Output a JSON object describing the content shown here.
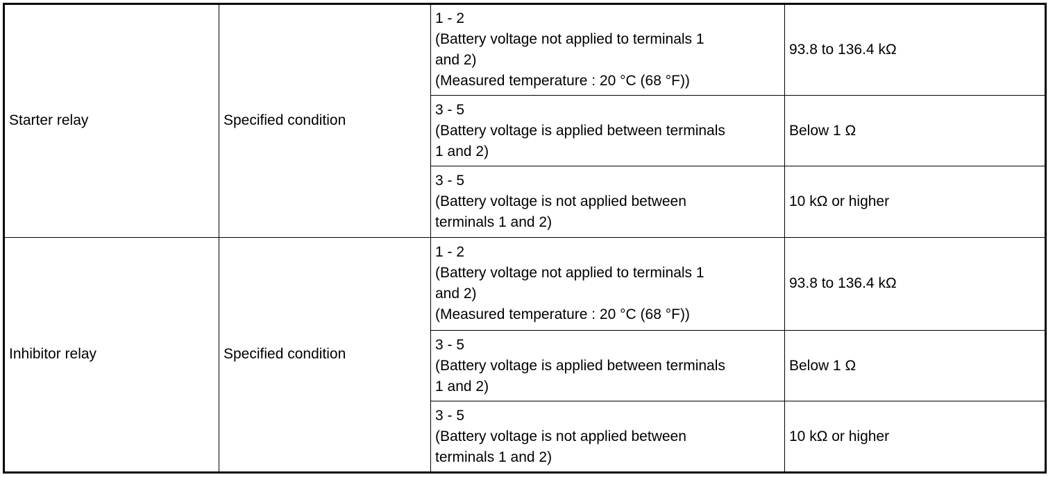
{
  "rows": [
    {
      "component": "Starter relay",
      "condition": "Specified condition",
      "tests": [
        {
          "terminals": "1 - 2",
          "notes": [
            "(Battery voltage not applied to terminals 1",
            "and 2)",
            "(Measured temperature : 20 °C (68 °F))"
          ],
          "spec": "93.8 to 136.4 kΩ"
        },
        {
          "terminals": "3 - 5",
          "notes": [
            "(Battery voltage is applied between terminals",
            "1 and 2)"
          ],
          "spec": "Below 1 Ω"
        },
        {
          "terminals": "3 - 5",
          "notes": [
            "(Battery voltage is not applied between",
            "terminals 1 and 2)"
          ],
          "spec": "10 kΩ or higher"
        }
      ]
    },
    {
      "component": "Inhibitor relay",
      "condition": "Specified condition",
      "tests": [
        {
          "terminals": "1 - 2",
          "notes": [
            "(Battery voltage not applied to terminals 1",
            "and 2)",
            "(Measured temperature : 20 °C (68 °F))"
          ],
          "spec": "93.8 to 136.4 kΩ"
        },
        {
          "terminals": "3 - 5",
          "notes": [
            "(Battery voltage is applied between terminals",
            "1 and 2)"
          ],
          "spec": "Below 1 Ω"
        },
        {
          "terminals": "3 - 5",
          "notes": [
            "(Battery voltage is not applied between",
            "terminals 1 and 2)"
          ],
          "spec": "10 kΩ or higher"
        }
      ]
    }
  ]
}
